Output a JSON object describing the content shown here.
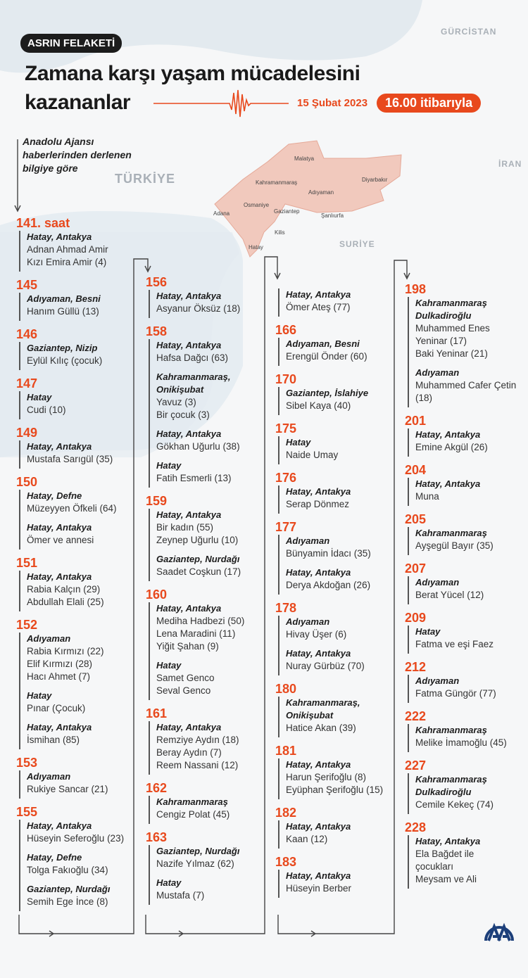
{
  "header": {
    "tag": "ASRIN FELAKETİ",
    "title_line1": "Zamana karşı yaşam mücadelesini",
    "title_line2": "kazananlar",
    "date": "15 Şubat 2023",
    "time": "16.00 itibarıyla"
  },
  "intro": {
    "line1": "Anadolu Ajansı",
    "line2": "haberlerinden derlenen",
    "line3": "bilgiye göre"
  },
  "map": {
    "countries": [
      "GÜRCİSTAN",
      "İRAN",
      "TÜRKİYE",
      "SURİYE"
    ],
    "cities": [
      "Malatya",
      "Diyarbakır",
      "Kahramanmaraş",
      "Adıyaman",
      "Osmaniye",
      "Adana",
      "Gaziantep",
      "Şanlıurfa",
      "Kilis",
      "Hatay"
    ],
    "colors": {
      "accent": "#e8491d",
      "region": "#f1c9bd"
    }
  },
  "logo": "AA",
  "columns": [
    [
      {
        "hour": "141. saat",
        "groups": [
          {
            "place": "Hatay, Antakya",
            "names": [
              "Adnan Ahmad Amir",
              "Kızı Emira Amir (4)"
            ]
          }
        ]
      },
      {
        "hour": "145",
        "groups": [
          {
            "place": "Adıyaman, Besni",
            "names": [
              "Hanım Güllü (13)"
            ]
          }
        ]
      },
      {
        "hour": "146",
        "groups": [
          {
            "place": "Gaziantep, Nizip",
            "names": [
              "Eylül Kılıç (çocuk)"
            ]
          }
        ]
      },
      {
        "hour": "147",
        "groups": [
          {
            "place": "Hatay",
            "names": [
              "Cudi (10)"
            ]
          }
        ]
      },
      {
        "hour": "149",
        "groups": [
          {
            "place": "Hatay, Antakya",
            "names": [
              "Mustafa Sarıgül (35)"
            ]
          }
        ]
      },
      {
        "hour": "150",
        "groups": [
          {
            "place": "Hatay, Defne",
            "names": [
              "Müzeyyen Öfkeli (64)"
            ]
          },
          {
            "place": "Hatay, Antakya",
            "names": [
              "Ömer ve annesi"
            ]
          }
        ]
      },
      {
        "hour": "151",
        "groups": [
          {
            "place": "Hatay, Antakya",
            "names": [
              "Rabia Kalçın (29)",
              "Abdullah Elali (25)"
            ]
          }
        ]
      },
      {
        "hour": "152",
        "groups": [
          {
            "place": "Adıyaman",
            "names": [
              "Rabia Kırmızı (22)",
              "Elif Kırmızı (28)",
              "Hacı Ahmet (7)"
            ]
          },
          {
            "place": "Hatay",
            "names": [
              "Pınar (Çocuk)"
            ]
          },
          {
            "place": "Hatay, Antakya",
            "names": [
              "İsmihan (85)"
            ]
          }
        ]
      },
      {
        "hour": "153",
        "groups": [
          {
            "place": "Adıyaman",
            "names": [
              "Rukiye Sancar (21)"
            ]
          }
        ]
      },
      {
        "hour": "155",
        "groups": [
          {
            "place": "Hatay, Antakya",
            "names": [
              "Hüseyin Seferoğlu (23)"
            ]
          },
          {
            "place": "Hatay, Defne",
            "names": [
              "Tolga Fakıoğlu (34)"
            ]
          },
          {
            "place": "Gaziantep, Nurdağı",
            "names": [
              "Semih Ege İnce (8)"
            ]
          }
        ]
      }
    ],
    [
      {
        "hour": "156",
        "groups": [
          {
            "place": "Hatay, Antakya",
            "names": [
              "Asyanur Öksüz (18)"
            ]
          }
        ]
      },
      {
        "hour": "158",
        "groups": [
          {
            "place": "Hatay, Antakya",
            "names": [
              "Hafsa Dağcı (63)"
            ]
          },
          {
            "place": "Kahramanmaraş, Onikişubat",
            "names": [
              "Yavuz (3)",
              "Bir çocuk (3)"
            ]
          },
          {
            "place": "Hatay, Antakya",
            "names": [
              "Gökhan Uğurlu (38)"
            ]
          },
          {
            "place": "Hatay",
            "names": [
              "Fatih Esmerli (13)"
            ]
          }
        ]
      },
      {
        "hour": "159",
        "groups": [
          {
            "place": "Hatay, Antakya",
            "names": [
              "Bir kadın (55)",
              "Zeynep Uğurlu (10)"
            ]
          },
          {
            "place": "Gaziantep, Nurdağı",
            "names": [
              "Saadet Coşkun (17)"
            ]
          }
        ]
      },
      {
        "hour": "160",
        "groups": [
          {
            "place": "Hatay, Antakya",
            "names": [
              "Mediha Hadbezi (50)",
              "Lena Maradini (11)",
              "Yiğit Şahan (9)"
            ]
          },
          {
            "place": "Hatay",
            "names": [
              "Samet Genco",
              "Seval Genco"
            ]
          }
        ]
      },
      {
        "hour": "161",
        "groups": [
          {
            "place": "Hatay, Antakya",
            "names": [
              "Remziye Aydın (18)",
              "Beray Aydın (7)",
              "Reem Nassani (12)"
            ]
          }
        ]
      },
      {
        "hour": "162",
        "groups": [
          {
            "place": "Kahramanmaraş",
            "names": [
              "Cengiz Polat (45)"
            ]
          }
        ]
      },
      {
        "hour": "163",
        "groups": [
          {
            "place": "Gaziantep, Nurdağı",
            "names": [
              "Nazife Yılmaz (62)"
            ]
          },
          {
            "place": "Hatay",
            "names": [
              "Mustafa (7)"
            ]
          }
        ]
      }
    ],
    [
      {
        "hour": "",
        "groups": [
          {
            "place": "Hatay, Antakya",
            "names": [
              "Ömer Ateş (77)"
            ]
          }
        ]
      },
      {
        "hour": "166",
        "groups": [
          {
            "place": "Adıyaman, Besni",
            "names": [
              "Erengül Önder (60)"
            ]
          }
        ]
      },
      {
        "hour": "170",
        "groups": [
          {
            "place": "Gaziantep, İslahiye",
            "names": [
              "Sibel Kaya (40)"
            ]
          }
        ]
      },
      {
        "hour": "175",
        "groups": [
          {
            "place": "Hatay",
            "names": [
              "Naide Umay"
            ]
          }
        ]
      },
      {
        "hour": "176",
        "groups": [
          {
            "place": "Hatay, Antakya",
            "names": [
              "Serap Dönmez"
            ]
          }
        ]
      },
      {
        "hour": "177",
        "groups": [
          {
            "place": "Adıyaman",
            "names": [
              "Bünyamin İdacı (35)"
            ]
          },
          {
            "place": "Hatay, Antakya",
            "names": [
              "Derya Akdoğan (26)"
            ]
          }
        ]
      },
      {
        "hour": "178",
        "groups": [
          {
            "place": "Adıyaman",
            "names": [
              "Hivay Üşer (6)"
            ]
          },
          {
            "place": "Hatay, Antakya",
            "names": [
              "Nuray Gürbüz (70)"
            ]
          }
        ]
      },
      {
        "hour": "180",
        "groups": [
          {
            "place": "Kahramanmaraş, Onikişubat",
            "names": [
              "Hatice Akan (39)"
            ]
          }
        ]
      },
      {
        "hour": "181",
        "groups": [
          {
            "place": "Hatay, Antakya",
            "names": [
              "Harun Şerifoğlu (8)",
              "Eyüphan Şerifoğlu (15)"
            ]
          }
        ]
      },
      {
        "hour": "182",
        "groups": [
          {
            "place": "Hatay, Antakya",
            "names": [
              "Kaan (12)"
            ]
          }
        ]
      },
      {
        "hour": "183",
        "groups": [
          {
            "place": "Hatay, Antakya",
            "names": [
              "Hüseyin Berber"
            ]
          }
        ]
      }
    ],
    [
      {
        "hour": "198",
        "groups": [
          {
            "place": "Kahramanmaraş Dulkadiroğlu",
            "names": [
              "Muhammed Enes Yeninar (17)",
              "Baki Yeninar (21)"
            ]
          },
          {
            "place": "Adıyaman",
            "names": [
              "Muhammed Cafer Çetin (18)"
            ]
          }
        ]
      },
      {
        "hour": "201",
        "groups": [
          {
            "place": "Hatay, Antakya",
            "names": [
              "Emine Akgül (26)"
            ]
          }
        ]
      },
      {
        "hour": "204",
        "groups": [
          {
            "place": "Hatay, Antakya",
            "names": [
              "Muna"
            ]
          }
        ]
      },
      {
        "hour": "205",
        "groups": [
          {
            "place": "Kahramanmaraş",
            "names": [
              "Ayşegül Bayır (35)"
            ]
          }
        ]
      },
      {
        "hour": "207",
        "groups": [
          {
            "place": "Adıyaman",
            "names": [
              "Berat Yücel (12)"
            ]
          }
        ]
      },
      {
        "hour": "209",
        "groups": [
          {
            "place": "Hatay",
            "names": [
              "Fatma ve eşi Faez"
            ]
          }
        ]
      },
      {
        "hour": "212",
        "groups": [
          {
            "place": "Adıyaman",
            "names": [
              "Fatma Güngör (77)"
            ]
          }
        ]
      },
      {
        "hour": "222",
        "groups": [
          {
            "place": "Kahramanmaraş",
            "names": [
              "Melike İmamoğlu (45)"
            ]
          }
        ]
      },
      {
        "hour": "227",
        "groups": [
          {
            "place": "Kahramanmaraş Dulkadiroğlu",
            "names": [
              "Cemile Kekeç (74)"
            ]
          }
        ]
      },
      {
        "hour": "228",
        "groups": [
          {
            "place": "Hatay, Antakya",
            "names": [
              "Ela Bağdet ile",
              "çocukları",
              "Meysam ve Ali"
            ]
          }
        ]
      }
    ]
  ]
}
